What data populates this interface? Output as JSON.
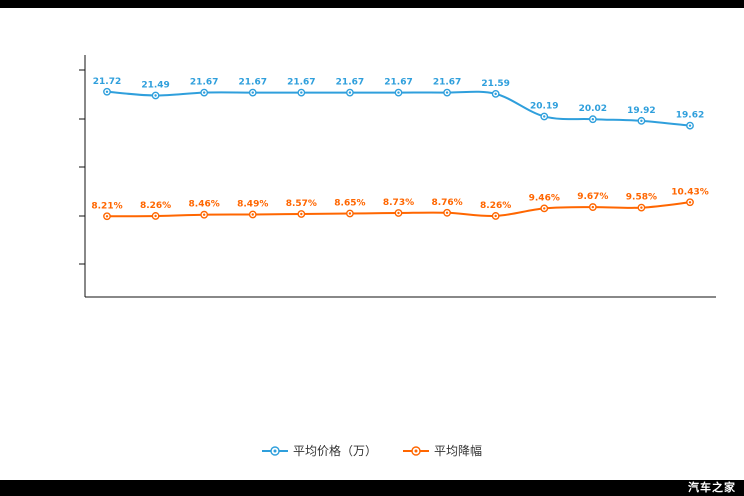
{
  "watermark": "汽车之家",
  "chart_data": {
    "type": "line",
    "title": "",
    "xlabel": "",
    "ylabel": "",
    "grid": false,
    "legend_position": "bottom",
    "x_tick_labels_visible": false,
    "series": [
      {
        "name": "平均价格（万）",
        "color": "#2f9fdc",
        "label_suffix": "",
        "ylim": [
          9,
          24
        ],
        "values": [
          21.72,
          21.49,
          21.67,
          21.67,
          21.67,
          21.67,
          21.67,
          21.67,
          21.59,
          20.19,
          20.02,
          19.92,
          19.62
        ],
        "labels": [
          "21.72",
          "21.49",
          "21.67",
          "21.67",
          "21.67",
          "21.67",
          "21.67",
          "21.67",
          "21.59",
          "20.19",
          "20.02",
          "19.92",
          "19.62"
        ]
      },
      {
        "name": "平均降幅",
        "color": "#ff6600",
        "label_suffix": "%",
        "ylim": [
          -4.6,
          33.8
        ],
        "values": [
          8.21,
          8.26,
          8.46,
          8.49,
          8.57,
          8.65,
          8.73,
          8.76,
          8.26,
          9.46,
          9.67,
          9.58,
          10.43
        ],
        "labels": [
          "8.21%",
          "8.26%",
          "8.46%",
          "8.49%",
          "8.57%",
          "8.65%",
          "8.73%",
          "8.76%",
          "8.26%",
          "9.46%",
          "9.67%",
          "9.58%",
          "10.43%"
        ]
      }
    ]
  }
}
